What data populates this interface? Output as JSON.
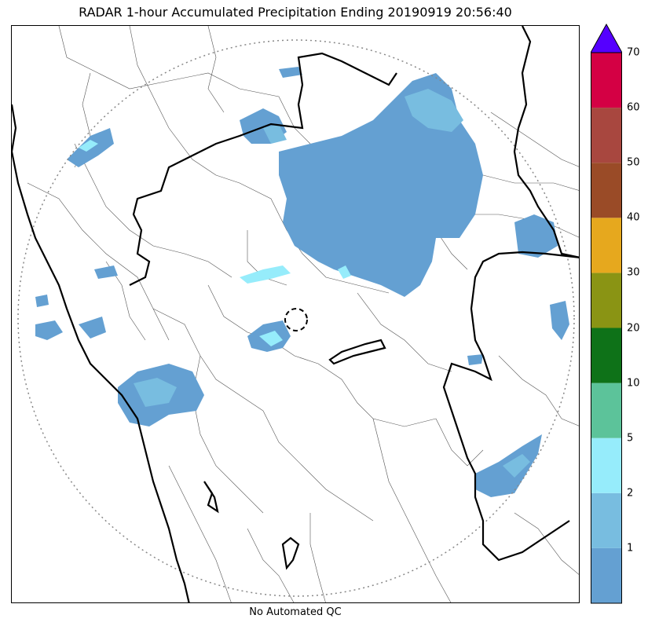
{
  "title": "RADAR 1-hour Accumulated Precipitation Ending 20190919 20:56:40",
  "footer": "No Automated QC",
  "colorbar": {
    "extend": "max",
    "extend_color": "#5500ff",
    "bins": [
      {
        "label": "",
        "color": "#64a0d2"
      },
      {
        "label": "1",
        "color": "#78bde0"
      },
      {
        "label": "2",
        "color": "#96ecfb"
      },
      {
        "label": "5",
        "color": "#5cc39a"
      },
      {
        "label": "10",
        "color": "#0e7218"
      },
      {
        "label": "20",
        "color": "#8a9414"
      },
      {
        "label": "30",
        "color": "#e6a81e"
      },
      {
        "label": "40",
        "color": "#9a4b27"
      },
      {
        "label": "50",
        "color": "#a8473f"
      },
      {
        "label": "60",
        "color": "#d40044"
      },
      {
        "label": "70",
        "color": ""
      }
    ]
  },
  "map": {
    "range_ring": "dotted",
    "radar_site": "dashed-circle",
    "colors": {
      "rain_light": "#64a0d2",
      "rain_mid": "#78bde0",
      "rain_heavy": "#96ecfb",
      "coast": "#000000",
      "district_lines": "#555555"
    }
  }
}
